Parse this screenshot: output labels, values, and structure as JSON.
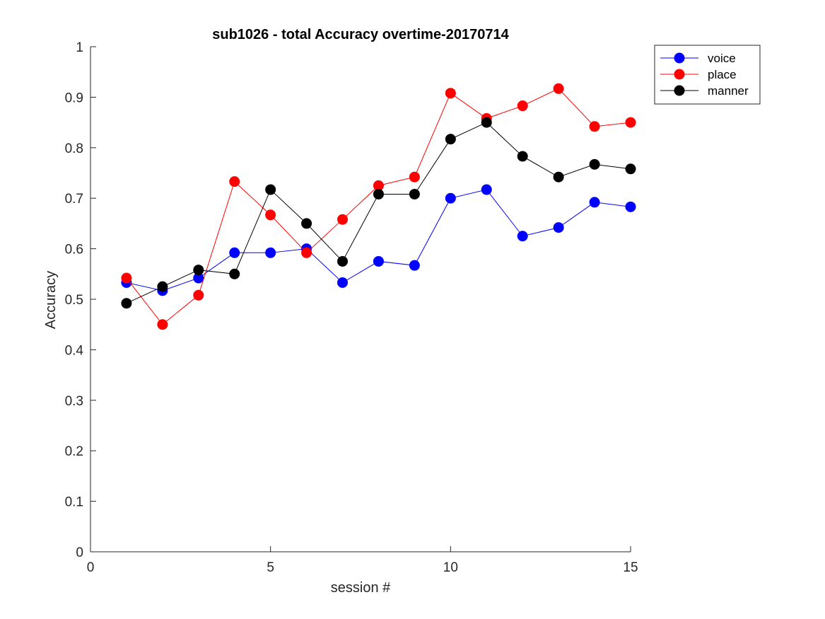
{
  "chart_data": {
    "type": "line",
    "title": "sub1026 - total Accuracy overtime-20170714",
    "xlabel": "session #",
    "ylabel": "Accuracy",
    "xlim": [
      0,
      15
    ],
    "ylim": [
      0,
      1
    ],
    "xticks": [
      0,
      5,
      10,
      15
    ],
    "yticks": [
      0,
      0.1,
      0.2,
      0.3,
      0.4,
      0.5,
      0.6,
      0.7,
      0.8,
      0.9,
      1
    ],
    "xtick_labels": [
      "0",
      "5",
      "10",
      "15"
    ],
    "ytick_labels": [
      "0",
      "0.1",
      "0.2",
      "0.3",
      "0.4",
      "0.5",
      "0.6",
      "0.7",
      "0.8",
      "0.9",
      "1"
    ],
    "grid": false,
    "legend_position": "top-right",
    "x": [
      1,
      2,
      3,
      4,
      5,
      6,
      7,
      8,
      9,
      10,
      11,
      12,
      13,
      14,
      15
    ],
    "series": [
      {
        "name": "voice",
        "color": "#0000ff",
        "values": [
          0.533,
          0.517,
          0.542,
          0.592,
          0.592,
          0.6,
          0.533,
          0.575,
          0.567,
          0.7,
          0.717,
          0.625,
          0.642,
          0.692,
          0.683
        ]
      },
      {
        "name": "place",
        "color": "#ff0000",
        "values": [
          0.542,
          0.45,
          0.508,
          0.733,
          0.667,
          0.592,
          0.658,
          0.725,
          0.742,
          0.908,
          0.858,
          0.883,
          0.917,
          0.842,
          0.85
        ]
      },
      {
        "name": "manner",
        "color": "#000000",
        "values": [
          0.492,
          0.525,
          0.558,
          0.55,
          0.717,
          0.65,
          0.575,
          0.708,
          0.708,
          0.817,
          0.85,
          0.783,
          0.742,
          0.767,
          0.758
        ]
      }
    ]
  }
}
